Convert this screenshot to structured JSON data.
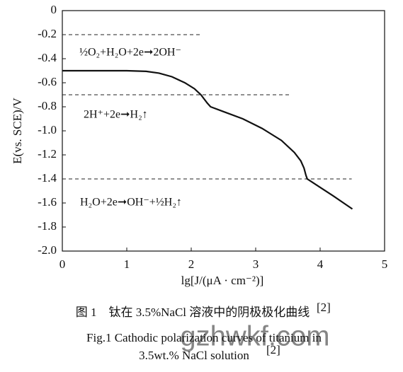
{
  "chart_data": {
    "type": "line",
    "x": [
      0,
      0.5,
      1.0,
      1.3,
      1.5,
      1.7,
      1.9,
      2.05,
      2.15,
      2.25,
      2.3,
      2.5,
      2.8,
      3.1,
      3.4,
      3.6,
      3.7,
      3.75,
      3.78,
      3.8,
      4.0,
      4.2,
      4.5
    ],
    "series": [
      {
        "color": "#111111",
        "values": [
          -0.5,
          -0.5,
          -0.5,
          -0.505,
          -0.52,
          -0.55,
          -0.6,
          -0.65,
          -0.7,
          -0.77,
          -0.8,
          -0.84,
          -0.9,
          -0.98,
          -1.08,
          -1.18,
          -1.25,
          -1.31,
          -1.37,
          -1.4,
          -1.47,
          -1.54,
          -1.65
        ]
      }
    ],
    "xlabel": "lg[J/(μA · cm⁻²)]",
    "ylabel": "E(vs. SCE)/V",
    "xlim": [
      0,
      5
    ],
    "xticks": [
      0,
      1,
      2,
      3,
      4,
      5
    ],
    "ylim": [
      -2,
      0
    ],
    "yticks": [
      0,
      -0.2,
      -0.4,
      -0.6,
      -0.8,
      {
        "value": -1,
        "label": "-1.0"
      },
      -1.2,
      -1.4,
      -1.6,
      -1.8,
      {
        "value": -2,
        "label": "-2.0"
      }
    ],
    "reference_lines": [
      {
        "y": -0.2,
        "x_end": 2.15
      },
      {
        "y": -0.7,
        "x_end": 3.52
      },
      {
        "y": -1.4,
        "x_end": 4.49
      }
    ],
    "annotations": [
      "½O₂+H₂O+2e➞2OH⁻",
      "2H⁺+2e➞H₂↑",
      "H₂O+2e➞OH⁻+½H₂↑"
    ],
    "caption_cn": "图 1　钛在 3.5%NaCl 溶液中的阴极极化曲线",
    "caption_cn_ref": "[2]",
    "caption_en": [
      "Fig.1 Cathodic polarization curves of titanium in",
      "3.5wt.% NaCl solution"
    ],
    "caption_en_ref": "[2]",
    "watermark": "gzhwkf.com"
  }
}
